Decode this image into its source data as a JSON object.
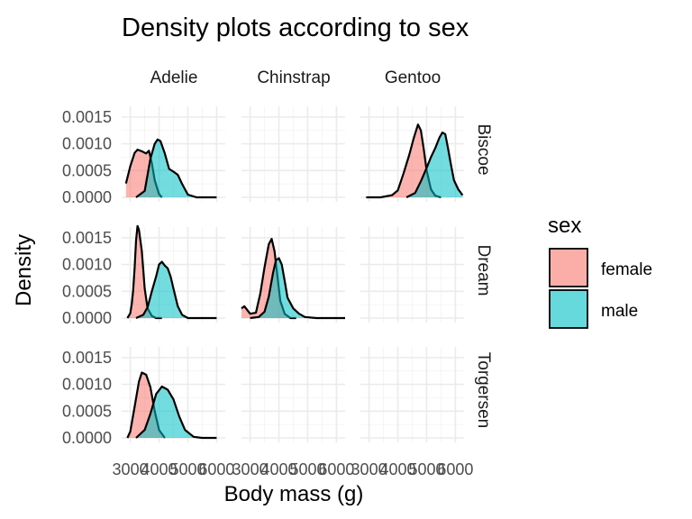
{
  "chart_data": {
    "type": "area",
    "title": "Density plots according to sex",
    "xlabel": "Body mass (g)",
    "ylabel": "Density",
    "xlim": [
      2700,
      6300
    ],
    "ylim": [
      0,
      0.0017
    ],
    "x_ticks": [
      3000,
      4000,
      5000,
      6000
    ],
    "x_tick_labels": [
      "3000",
      "4000",
      "5000",
      "6000"
    ],
    "y_ticks": [
      0,
      0.0005,
      0.001,
      0.0015
    ],
    "y_tick_labels": [
      "0.0000",
      "0.0005",
      "0.0010",
      "0.0015"
    ],
    "grid": true,
    "facet_columns": [
      "Adelie",
      "Chinstrap",
      "Gentoo"
    ],
    "facet_rows": [
      "Biscoe",
      "Dream",
      "Torgersen"
    ],
    "legend": {
      "title": "sex",
      "position": "right",
      "entries": [
        {
          "label": "female",
          "color": "#F8766D"
        },
        {
          "label": "male",
          "color": "#00BFC4"
        }
      ]
    },
    "panels": [
      {
        "row": "Biscoe",
        "col": "Adelie",
        "series": [
          {
            "name": "female",
            "x": [
              2850,
              3000,
              3150,
              3250,
              3400,
              3550,
              3650,
              3750,
              3850,
              4000,
              4100
            ],
            "y": [
              0.00026,
              0.00058,
              0.00083,
              0.00089,
              0.00086,
              0.00082,
              0.00087,
              0.00064,
              0.00032,
              6e-05,
              0.0
            ]
          },
          {
            "name": "male",
            "x": [
              3200,
              3500,
              3700,
              3850,
              3950,
              4050,
              4200,
              4350,
              4500,
              4650,
              4800,
              5000,
              5300,
              6000
            ],
            "y": [
              0.0,
              0.00012,
              0.00072,
              0.001,
              0.00108,
              0.00105,
              0.00082,
              0.00053,
              0.00048,
              0.00042,
              0.00025,
              5e-05,
              0.0,
              0.0
            ]
          }
        ]
      },
      {
        "row": "Biscoe",
        "col": "Chinstrap",
        "series": []
      },
      {
        "row": "Biscoe",
        "col": "Gentoo",
        "series": [
          {
            "name": "female",
            "x": [
              2900,
              3400,
              3800,
              4000,
              4200,
              4400,
              4550,
              4700,
              4800,
              4900,
              5000,
              5150,
              5300,
              5500
            ],
            "y": [
              0.0,
              0.0,
              4e-05,
              0.00013,
              0.00045,
              0.0008,
              0.0011,
              0.00136,
              0.00125,
              0.0009,
              0.0005,
              0.00015,
              3e-05,
              0.0
            ]
          },
          {
            "name": "male",
            "x": [
              4300,
              4600,
              4800,
              5000,
              5150,
              5300,
              5450,
              5550,
              5650,
              5750,
              5850,
              5950,
              6100,
              6250
            ],
            "y": [
              0.0,
              8e-05,
              0.0003,
              0.00055,
              0.00075,
              0.00092,
              0.00112,
              0.00121,
              0.00118,
              0.0009,
              0.0006,
              0.00032,
              0.00015,
              4e-05
            ]
          }
        ]
      },
      {
        "row": "Dream",
        "col": "Adelie",
        "series": [
          {
            "name": "female",
            "x": [
              2900,
              3000,
              3050,
              3100,
              3150,
              3200,
              3250,
              3300,
              3400,
              3500,
              3600,
              3750,
              3900,
              4100
            ],
            "y": [
              0.0,
              9e-05,
              0.00026,
              0.00052,
              0.00093,
              0.00145,
              0.00172,
              0.00165,
              0.00125,
              0.00055,
              0.00018,
              4e-05,
              0.0,
              0.0
            ]
          },
          {
            "name": "male",
            "x": [
              3200,
              3450,
              3600,
              3750,
              3900,
              4000,
              4100,
              4200,
              4300,
              4400,
              4500,
              4650,
              4800,
              5000,
              6000
            ],
            "y": [
              0.0,
              6e-05,
              0.0002,
              0.0005,
              0.00078,
              0.001,
              0.00105,
              0.00098,
              0.00093,
              0.00078,
              0.00055,
              0.00022,
              6e-05,
              0.0,
              0.0
            ]
          }
        ]
      },
      {
        "row": "Dream",
        "col": "Chinstrap",
        "series": [
          {
            "name": "female",
            "x": [
              2700,
              2800,
              2900,
              3000,
              3200,
              3350,
              3500,
              3650,
              3750,
              3850,
              3950,
              4050,
              4200,
              4400,
              4600
            ],
            "y": [
              0.00018,
              0.00022,
              0.00015,
              8e-05,
              0.0001,
              0.00045,
              0.00095,
              0.00138,
              0.00148,
              0.00125,
              0.00078,
              0.00032,
              8e-05,
              0.0,
              0.0
            ]
          },
          {
            "name": "male",
            "x": [
              3000,
              3300,
              3500,
              3650,
              3800,
              3900,
              4000,
              4100,
              4200,
              4300,
              4500,
              4700,
              4900,
              5300,
              6300
            ],
            "y": [
              0.0,
              2e-05,
              0.00012,
              0.0004,
              0.00085,
              0.00108,
              0.00112,
              0.001,
              0.0007,
              0.00038,
              0.00018,
              8e-05,
              2e-05,
              0.0,
              0.0
            ]
          }
        ]
      },
      {
        "row": "Dream",
        "col": "Gentoo",
        "series": []
      },
      {
        "row": "Torgersen",
        "col": "Adelie",
        "series": [
          {
            "name": "female",
            "x": [
              2900,
              3000,
              3150,
              3300,
              3400,
              3550,
              3700,
              3850,
              4000,
              4200
            ],
            "y": [
              0.0,
              0.00012,
              0.00058,
              0.00105,
              0.00122,
              0.00118,
              0.00095,
              0.0005,
              0.00015,
              0.0
            ]
          },
          {
            "name": "male",
            "x": [
              3200,
              3500,
              3700,
              3900,
              4100,
              4300,
              4500,
              4700,
              4900,
              5200,
              5500,
              6000
            ],
            "y": [
              0.0,
              0.00015,
              0.00045,
              0.00082,
              0.00096,
              0.0009,
              0.00072,
              0.0004,
              0.00015,
              2e-05,
              0.0,
              0.0
            ]
          }
        ]
      },
      {
        "row": "Torgersen",
        "col": "Chinstrap",
        "series": []
      },
      {
        "row": "Torgersen",
        "col": "Gentoo",
        "series": []
      }
    ]
  }
}
